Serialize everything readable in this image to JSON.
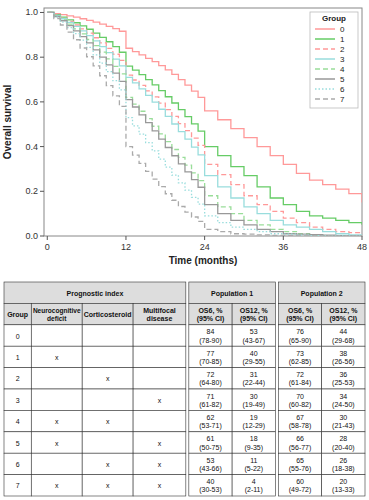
{
  "chart_data": [
    {
      "type": "step",
      "x_label": "Time (months)",
      "y_label": "Overall survival",
      "legend": "upper right",
      "legend_title": "Group",
      "grid": false,
      "xlim": [
        -0.5,
        48
      ],
      "xticks": [
        0,
        12,
        24,
        36,
        48
      ],
      "ylim": [
        0.0,
        1.02
      ],
      "yticks": [
        {
          "value": 0.0,
          "label": "0.0"
        },
        0.2,
        0.4,
        0.6,
        0.8,
        {
          "value": 1.0,
          "label": "1.0"
        }
      ],
      "x": [
        0,
        1,
        2,
        3,
        4,
        5,
        6,
        7,
        8,
        9,
        10,
        11,
        12,
        13,
        14,
        15,
        16,
        17,
        18,
        19,
        20,
        21,
        22,
        23,
        24,
        26,
        28,
        30,
        32,
        34,
        36,
        38,
        40,
        42,
        44,
        46,
        48
      ],
      "series": [
        {
          "name": "0",
          "color": "#FF9999",
          "line_style": "solid",
          "values": [
            1.0,
            0.995,
            0.99,
            0.985,
            0.979,
            0.972,
            0.965,
            0.957,
            0.948,
            0.938,
            0.928,
            0.916,
            0.84,
            0.825,
            0.81,
            0.795,
            0.78,
            0.762,
            0.743,
            0.723,
            0.7,
            0.675,
            0.648,
            0.62,
            0.56,
            0.52,
            0.48,
            0.44,
            0.4,
            0.36,
            0.32,
            0.28,
            0.25,
            0.23,
            0.21,
            0.19,
            0.15
          ]
        },
        {
          "name": "1",
          "color": "#66CC66",
          "line_style": "solid",
          "values": [
            1.0,
            0.99,
            0.979,
            0.967,
            0.954,
            0.94,
            0.925,
            0.908,
            0.889,
            0.869,
            0.847,
            0.822,
            0.76,
            0.742,
            0.722,
            0.7,
            0.676,
            0.65,
            0.623,
            0.595,
            0.565,
            0.534,
            0.502,
            0.469,
            0.4,
            0.36,
            0.31,
            0.27,
            0.22,
            0.17,
            0.14,
            0.11,
            0.09,
            0.08,
            0.07,
            0.06,
            0.05
          ]
        },
        {
          "name": "2",
          "color": "#FF9999",
          "line_style": "dashed",
          "values": [
            1.0,
            0.988,
            0.975,
            0.96,
            0.944,
            0.927,
            0.908,
            0.887,
            0.864,
            0.839,
            0.813,
            0.786,
            0.72,
            0.698,
            0.674,
            0.649,
            0.622,
            0.594,
            0.565,
            0.535,
            0.503,
            0.471,
            0.438,
            0.405,
            0.32,
            0.275,
            0.23,
            0.18,
            0.14,
            0.11,
            0.08,
            0.06,
            0.04,
            0.03,
            0.02,
            0.015,
            0.01
          ]
        },
        {
          "name": "3",
          "color": "#99DDDD",
          "line_style": "solid",
          "values": [
            1.0,
            0.987,
            0.972,
            0.956,
            0.938,
            0.918,
            0.896,
            0.873,
            0.847,
            0.82,
            0.791,
            0.761,
            0.71,
            0.685,
            0.658,
            0.629,
            0.599,
            0.567,
            0.535,
            0.501,
            0.467,
            0.433,
            0.398,
            0.363,
            0.27,
            0.22,
            0.17,
            0.13,
            0.1,
            0.07,
            0.05,
            0.04,
            0.03,
            0.02,
            0.01,
            0.005,
            0.002
          ]
        },
        {
          "name": "4",
          "color": "#99DD99",
          "line_style": "dashed",
          "values": [
            1.0,
            0.984,
            0.967,
            0.948,
            0.927,
            0.904,
            0.879,
            0.852,
            0.823,
            0.792,
            0.759,
            0.725,
            0.62,
            0.59,
            0.558,
            0.525,
            0.491,
            0.457,
            0.422,
            0.387,
            0.352,
            0.317,
            0.282,
            0.248,
            0.18,
            0.13,
            0.1,
            0.07,
            0.05,
            0.03,
            0.02,
            0.01,
            0.005,
            0.002,
            0.001,
            0.001,
            0.0
          ]
        },
        {
          "name": "5",
          "color": "#999999",
          "line_style": "solid",
          "values": [
            1.0,
            0.982,
            0.963,
            0.941,
            0.918,
            0.892,
            0.864,
            0.833,
            0.8,
            0.766,
            0.729,
            0.692,
            0.61,
            0.577,
            0.542,
            0.507,
            0.47,
            0.433,
            0.396,
            0.359,
            0.323,
            0.287,
            0.252,
            0.218,
            0.14,
            0.1,
            0.07,
            0.05,
            0.03,
            0.02,
            0.01,
            0.008,
            0.006,
            0.004,
            0.002,
            0.001,
            0.0
          ]
        },
        {
          "name": "6",
          "color": "#99DDDD",
          "line_style": "dotted",
          "values": [
            1.0,
            0.979,
            0.957,
            0.932,
            0.905,
            0.876,
            0.844,
            0.81,
            0.773,
            0.735,
            0.695,
            0.654,
            0.53,
            0.493,
            0.456,
            0.418,
            0.381,
            0.344,
            0.308,
            0.272,
            0.238,
            0.205,
            0.173,
            0.143,
            0.09,
            0.06,
            0.04,
            0.03,
            0.02,
            0.01,
            0.008,
            0.004,
            0.002,
            0.001,
            0.001,
            0.0,
            0.0
          ]
        },
        {
          "name": "7",
          "color": "#AAAAAA",
          "line_style": "dashed",
          "values": [
            1.0,
            0.973,
            0.944,
            0.912,
            0.878,
            0.841,
            0.802,
            0.761,
            0.717,
            0.673,
            0.627,
            0.58,
            0.4,
            0.362,
            0.325,
            0.289,
            0.254,
            0.221,
            0.189,
            0.16,
            0.132,
            0.107,
            0.085,
            0.065,
            0.03,
            0.02,
            0.01,
            0.008,
            0.005,
            0.003,
            0.002,
            0.001,
            0.001,
            0.0,
            0.0,
            0.0,
            0.0
          ]
        }
      ]
    },
    {
      "type": "table",
      "title": "Prognostic index",
      "headers": [
        "Group",
        "Neurocognitive\ndeficit",
        "Corticosteroid",
        "Multifocal\ndisease"
      ],
      "rows": [
        [
          "0",
          null,
          null,
          null
        ],
        [
          "1",
          "x",
          null,
          null
        ],
        [
          "2",
          null,
          "x",
          null
        ],
        [
          "3",
          null,
          null,
          "x"
        ],
        [
          "4",
          "x",
          "x",
          null
        ],
        [
          "5",
          "x",
          null,
          "x"
        ],
        [
          "6",
          null,
          "x",
          "x"
        ],
        [
          "7",
          "x",
          "x",
          "x"
        ]
      ]
    },
    {
      "type": "table",
      "title": "Population 1",
      "headers": [
        "OS6, %\n(95% CI)",
        "OS12, %\n(95% CI)"
      ],
      "rows": [
        [
          "84\n(78-90)",
          "53\n(43-67)"
        ],
        [
          "77\n(70-85)",
          "40\n(29-55)"
        ],
        [
          "72\n(64-80)",
          "31\n(22-44)"
        ],
        [
          "71\n(61-82)",
          "30\n(19-49)"
        ],
        [
          "62\n(53-71)",
          "19\n(12-29)"
        ],
        [
          "61\n(50-75)",
          "18\n(9-35)"
        ],
        [
          "53\n(43-66)",
          "11\n(5-22)"
        ],
        [
          "40\n(30-53)",
          "4\n(2-11)"
        ]
      ]
    },
    {
      "type": "table",
      "title": "Population 2",
      "headers": [
        "OS6, %\n(95% CI)",
        "OS12, %\n(95% CI)"
      ],
      "rows": [
        [
          "76\n(65-90)",
          "44\n(29-68)"
        ],
        [
          "73\n(62-85)",
          "38\n(26-56)"
        ],
        [
          "72\n(61-84)",
          "36\n(25-53)"
        ],
        [
          "70\n(60-82)",
          "34\n(24-50)"
        ],
        [
          "67\n(58-78)",
          "30\n(21-43)"
        ],
        [
          "66\n(56-77)",
          "28\n(20-40)"
        ],
        [
          "65\n(55-76)",
          "26\n(18-38)"
        ],
        [
          "60\n(49-72)",
          "20\n(13-33)"
        ]
      ]
    }
  ]
}
